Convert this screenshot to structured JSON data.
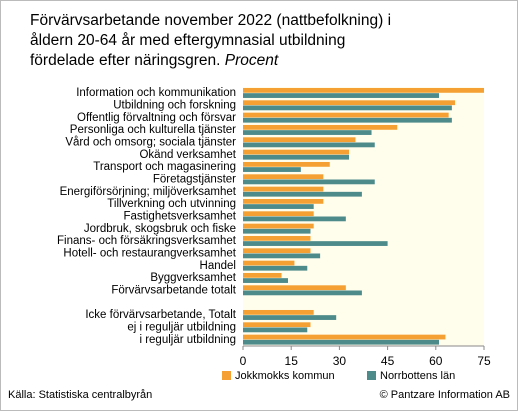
{
  "chart_data": {
    "type": "hbar",
    "title": [
      "Förvärvsarbetande november 2022 (nattbefolkning) i",
      "åldern 20-64 år med eftergymnasial utbildning",
      "fördelade efter näringsgren."
    ],
    "unit": "Procent",
    "categories": [
      "Information och kommunikation",
      "Utbildning och forskning",
      "Offentlig förvaltning och försvar",
      "Personliga och kulturella tjänster",
      "Vård och omsorg; sociala tjänster",
      "Okänd verksamhet",
      "Transport och magasinering",
      "Företagstjänster",
      "Energiförsörjning; miljöverksamhet",
      "Tillverkning och utvinning",
      "Fastighetsverksamhet",
      "Jordbruk, skogsbruk och fiske",
      "Finans- och försäkringsverksamhet",
      "Hotell- och restaurangverksamhet",
      "Handel",
      "Byggverksamhet",
      "Förvärvsarbetande totalt",
      null,
      "Icke förvärvsarbetande, Totalt",
      "ej i reguljär utbildning",
      "i reguljär utbildning"
    ],
    "series": [
      {
        "name": "Jokkmokks kommun",
        "color": "#f5a032",
        "values": [
          75,
          66,
          64,
          48,
          35,
          33,
          27,
          25,
          25,
          25,
          22,
          22,
          21,
          21,
          16,
          12,
          32,
          null,
          22,
          21,
          63
        ]
      },
      {
        "name": "Norrbottens län",
        "color": "#4d8b8b",
        "values": [
          61,
          65,
          65,
          40,
          41,
          33,
          18,
          41,
          37,
          22,
          32,
          21,
          45,
          24,
          20,
          14,
          37,
          null,
          29,
          20,
          61
        ]
      }
    ],
    "xlim": [
      0,
      75
    ],
    "xticks": [
      0,
      15,
      30,
      45,
      60,
      75
    ],
    "plot_background": "#fffdec",
    "source": "Källa: Statistiska centralbyrån",
    "credit": "© Pantzare Information AB"
  }
}
